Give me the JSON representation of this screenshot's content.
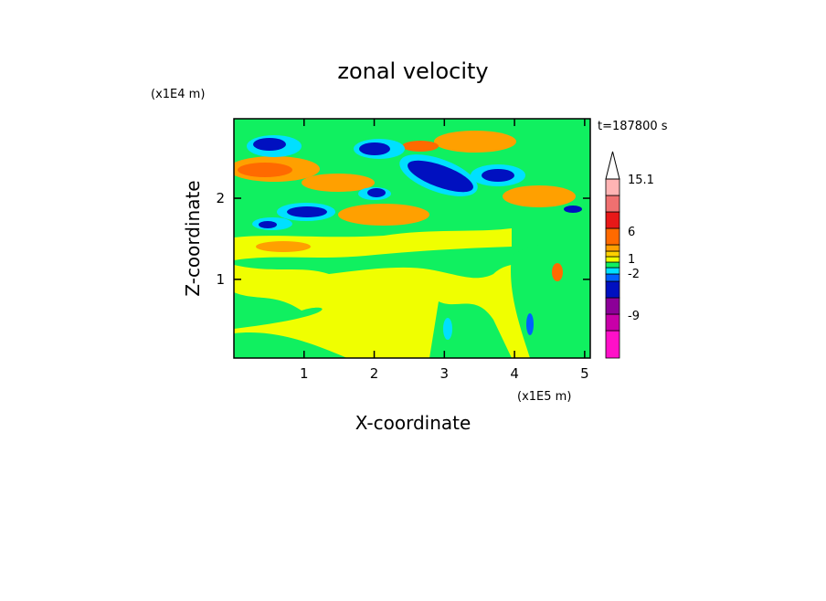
{
  "chart_data": {
    "type": "contourf",
    "title": "zonal velocity",
    "x_label": "X-coordinate",
    "y_label": "Z-coordinate",
    "x_unit": "(x1E5 m)",
    "y_unit": "(x1E4 m)",
    "time_label": "t=187800 s",
    "xlim": [
      0,
      5.08
    ],
    "xticks": [
      1,
      2,
      3,
      4,
      5
    ],
    "ylim": [
      0.03,
      2.98
    ],
    "yticks": [
      1,
      2
    ],
    "colorbar": {
      "colors": [
        "#ff10c8",
        "#c800a8",
        "#8c0098",
        "#0010c0",
        "#0060ff",
        "#00e0ff",
        "#10f060",
        "#f0ff00",
        "#ffd000",
        "#ffa000",
        "#ff6a00",
        "#e81818",
        "#f07070",
        "#ffb4b4"
      ],
      "ticks": [
        15.1,
        6,
        1,
        -2,
        -9
      ]
    }
  }
}
